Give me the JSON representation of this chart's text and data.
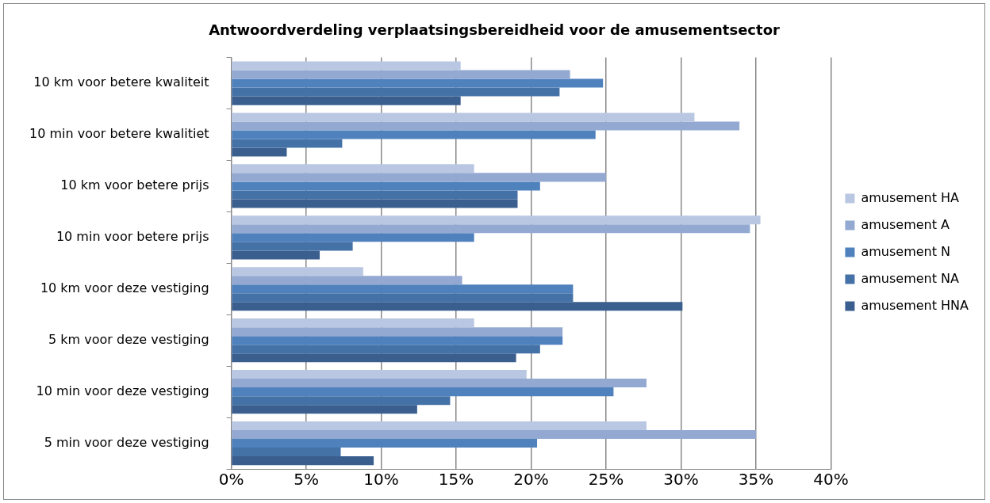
{
  "chart_data": {
    "type": "bar",
    "orientation": "horizontal",
    "title": "Antwoordverdeling verplaatsingsbereidheid voor de amusementsector",
    "categories": [
      "10 km voor betere kwaliteit",
      "10 min voor betere kwalitiet",
      "10 km voor betere prijs",
      "10 min voor betere prijs",
      "10 km voor deze vestiging",
      "5 km voor deze vestiging",
      "10 min voor deze vestiging",
      "5 min voor deze vestiging"
    ],
    "series": [
      {
        "name": "amusement HA",
        "color": "#b9c7e2",
        "values": [
          15.3,
          30.9,
          16.2,
          35.3,
          8.8,
          16.2,
          19.7,
          27.7
        ]
      },
      {
        "name": "amusement A",
        "color": "#93a9d2",
        "values": [
          22.6,
          33.9,
          25.0,
          34.6,
          15.4,
          22.1,
          27.7,
          35.0
        ]
      },
      {
        "name": "amusement N",
        "color": "#4f81bd",
        "values": [
          24.8,
          24.3,
          20.6,
          16.2,
          22.8,
          22.1,
          25.5,
          20.4
        ]
      },
      {
        "name": "amusement NA",
        "color": "#4471a6",
        "values": [
          21.9,
          7.4,
          19.1,
          8.1,
          22.8,
          20.6,
          14.6,
          7.3
        ]
      },
      {
        "name": "amusement HNA",
        "color": "#3a5f8f",
        "values": [
          15.3,
          3.7,
          19.1,
          5.9,
          30.1,
          19.0,
          12.4,
          9.5
        ]
      }
    ],
    "xlim": [
      0,
      40
    ],
    "xticks": [
      {
        "value": 0,
        "label": "0%"
      },
      {
        "value": 5,
        "label": "5%"
      },
      {
        "value": 10,
        "label": "10%"
      },
      {
        "value": 15,
        "label": "15%"
      },
      {
        "value": 20,
        "label": "20%"
      },
      {
        "value": 25,
        "label": "25%"
      },
      {
        "value": 30,
        "label": "30%"
      },
      {
        "value": 35,
        "label": "35%"
      },
      {
        "value": 40,
        "label": "40%"
      }
    ],
    "grid": "x",
    "legend": "right"
  }
}
